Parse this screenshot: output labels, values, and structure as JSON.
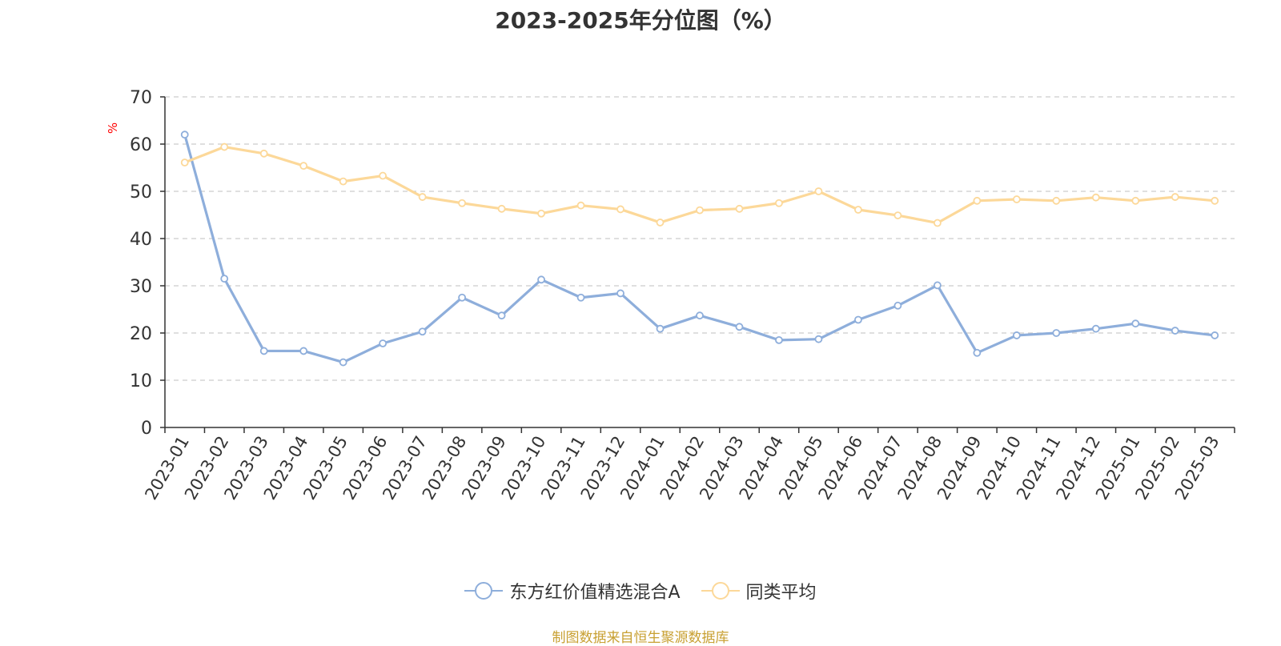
{
  "chart_data": {
    "type": "line",
    "title": "2023-2025年分位图（%）",
    "ylabel": "%",
    "xlabel": "",
    "ylim": [
      0,
      70
    ],
    "yticks": [
      0,
      10,
      20,
      30,
      40,
      50,
      60,
      70
    ],
    "grid": true,
    "legend_position": "bottom",
    "categories": [
      "2023-01",
      "2023-02",
      "2023-03",
      "2023-04",
      "2023-05",
      "2023-06",
      "2023-07",
      "2023-08",
      "2023-09",
      "2023-10",
      "2023-11",
      "2023-12",
      "2024-01",
      "2024-02",
      "2024-03",
      "2024-04",
      "2024-05",
      "2024-06",
      "2024-07",
      "2024-08",
      "2024-09",
      "2024-10",
      "2024-11",
      "2024-12",
      "2025-01",
      "2025-02",
      "2025-03"
    ],
    "series": [
      {
        "name": "东方红价值精选混合A",
        "color": "#8eaedb",
        "values": [
          62.0,
          31.5,
          16.2,
          16.2,
          13.8,
          17.8,
          20.3,
          27.5,
          23.7,
          31.3,
          27.5,
          28.4,
          20.9,
          23.7,
          21.3,
          18.5,
          18.7,
          22.8,
          25.8,
          30.1,
          15.8,
          19.5,
          20.0,
          20.9,
          22.0,
          20.5,
          19.5
        ]
      },
      {
        "name": "同类平均",
        "color": "#fcd899",
        "values": [
          56.1,
          59.4,
          58.0,
          55.4,
          52.1,
          53.3,
          48.8,
          47.5,
          46.3,
          45.3,
          47.0,
          46.2,
          43.4,
          46.0,
          46.3,
          47.5,
          50.0,
          46.1,
          44.9,
          43.3,
          48.0,
          48.3,
          48.0,
          48.7,
          48.0,
          48.8,
          48.0
        ]
      }
    ]
  },
  "colors": {
    "axis": "#333333",
    "grid": "#cccccc",
    "ylabel": "#ff0000",
    "source": "#c8a032"
  },
  "source_text": "制图数据来自恒生聚源数据库"
}
